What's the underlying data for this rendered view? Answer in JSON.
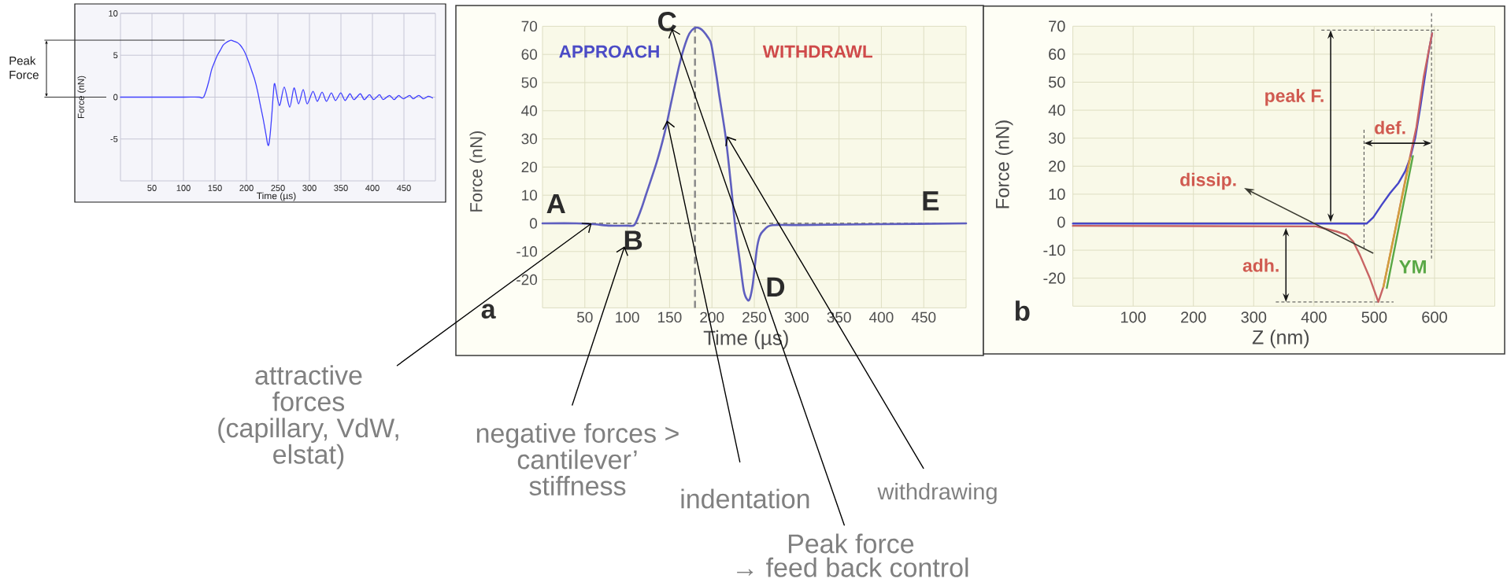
{
  "chart_data": [
    {
      "type": "line",
      "xlabel": "Time (µs)",
      "ylabel": "Force (nN)",
      "x": [
        0,
        50,
        100,
        125,
        128.9,
        132,
        135.7,
        140.3,
        144.8,
        149.4,
        153.9,
        158.5,
        163,
        167.6,
        172.1,
        176,
        179,
        185.8,
        190.3,
        194.9,
        199.5,
        204,
        208.6,
        213.1,
        217.7,
        222.2,
        226.8,
        231.3,
        233.6,
        235.4,
        237.7,
        240.4,
        242.7,
        245,
        252.3,
        260,
        268.7,
        275.5,
        282.8,
        290.1,
        296.4,
        305.6,
        312.4,
        320.1,
        327,
        334.7,
        341.5,
        349.7,
        356.6,
        364.3,
        370.7,
        380.7,
        387.1,
        395.3,
        402.1,
        411.2,
        417.1,
        427.1,
        434.4,
        441.7,
        449,
        459,
        464.9,
        473.6,
        480.9,
        488.6,
        495.4
      ],
      "values": [
        0,
        0,
        0,
        0,
        -0.1,
        0,
        0.7,
        1.9,
        3.3,
        4.2,
        5.0,
        5.6,
        6.2,
        6.5,
        6.7,
        6.8,
        6.7,
        6.5,
        6.2,
        5.7,
        5.0,
        4.1,
        3.1,
        2.1,
        0.7,
        -1.0,
        -2.7,
        -4.6,
        -5.6,
        -5.7,
        -4.4,
        -2.0,
        0.4,
        1.6,
        -1.0,
        1.2,
        -1.2,
        1.1,
        -0.8,
        0.9,
        -0.8,
        0.7,
        -0.5,
        0.6,
        -0.5,
        0.5,
        -0.4,
        0.5,
        -0.4,
        0.4,
        -0.3,
        0.4,
        -0.3,
        0.3,
        -0.3,
        0.3,
        -0.3,
        0.2,
        -0.3,
        0.2,
        -0.2,
        0.2,
        -0.2,
        0.2,
        -0.2,
        0.1,
        -0.1
      ],
      "color": "#4040ff",
      "xlim": [
        0,
        500
      ],
      "ylim": [
        -10,
        10
      ],
      "xticks": [
        50,
        100,
        150,
        200,
        250,
        300,
        350,
        400,
        450
      ],
      "yticks": [
        -5,
        0,
        5,
        10
      ],
      "grid": true,
      "ref_lines": [
        {
          "axis": "y",
          "value": 6.8,
          "color": "#333333",
          "label": "Peak Force"
        }
      ]
    },
    {
      "type": "line",
      "title": "a",
      "xlabel": "Time (µs)",
      "ylabel": "Force (nN)",
      "x": [
        0,
        40,
        60,
        80,
        100,
        108.6,
        116.2,
        122.4,
        134.7,
        143.9,
        150,
        159.3,
        165.4,
        171.6,
        176,
        181,
        186,
        190,
        195,
        199.3,
        205.4,
        208.5,
        216.1,
        222.3,
        227,
        233.1,
        237.7,
        242.3,
        245,
        248.4,
        253,
        256.5,
        260.8,
        270,
        300,
        400,
        500
      ],
      "values": [
        0,
        0,
        -0.3,
        -0.8,
        -0.8,
        -0.5,
        4.8,
        10.4,
        21.6,
        31.8,
        40.2,
        53.3,
        60.7,
        66.3,
        68.5,
        69.5,
        69.2,
        68.2,
        66.2,
        63.5,
        52.3,
        45.8,
        30.9,
        14.2,
        0.2,
        -13.8,
        -24,
        -27.3,
        -26.5,
        -21.2,
        -9.1,
        -4.5,
        -2.6,
        -0.7,
        -0.6,
        -0.3,
        0
      ],
      "color": "#5f5fbf",
      "xlim": [
        0,
        500
      ],
      "ylim": [
        -30,
        70
      ],
      "xticks": [
        {
          "value": 0,
          "label": null
        },
        50,
        100,
        150,
        200,
        250,
        300,
        350,
        400,
        450,
        {
          "value": 500,
          "label": null
        }
      ],
      "yticks": [
        {
          "value": -30,
          "label": null
        },
        -20,
        -10,
        0,
        10,
        20,
        30,
        40,
        50,
        60,
        70
      ],
      "grid": true,
      "ref_lines": [
        {
          "axis": "y",
          "value": 0,
          "color": "#2a2a2a",
          "line_style": "dashed"
        },
        {
          "axis": "x",
          "value": 180,
          "color": "#8a8a8a",
          "line_style": "dashed"
        }
      ],
      "annotations": [
        "A",
        "B",
        "C",
        "D",
        "E",
        "APPROACH",
        "WITHDRAWL",
        {
          "text": "attractive forces (capillary, VdW, elstat)",
          "x": 58,
          "y": 0
        },
        "negative forces > cantilever’ stiffness",
        {
          "text": "indentation",
          "x": 147,
          "y": 36.5
        },
        "Peak force",
        "→ feed back control",
        {
          "text": "withdrawing",
          "x": 217.7,
          "y": 30.9
        }
      ]
    },
    {
      "type": "line",
      "title": "b",
      "xlabel": "Z (nm)",
      "ylabel": "Force (nN)",
      "series": [
        {
          "color": "#4646c8",
          "x": [
            0,
            487.3,
            498.4,
            512.4,
            526.3,
            540.2,
            551.4,
            559.7,
            568.1,
            576.4,
            584.8,
            590,
            596
          ],
          "values": [
            -0.5,
            -0.5,
            1.7,
            6.2,
            10.4,
            14.0,
            18.2,
            23.0,
            30.2,
            41.0,
            53.0,
            60.5,
            67.4
          ]
        },
        {
          "color": "#c86464",
          "x": [
            0,
            403.7,
            437.2,
            453.9,
            465,
            476.2,
            492.9,
            506.8,
            515.2,
            537.5,
            558,
            570,
            582,
            596
          ],
          "values": [
            -1.3,
            -1.5,
            -3.3,
            -4.5,
            -6.9,
            -11.7,
            -20.1,
            -28.5,
            -23.1,
            0,
            22,
            34,
            51.8,
            67.4
          ]
        },
        {
          "color": "#d2a03c",
          "x": [
            515.2,
            559.7
          ],
          "values": [
            -23.1,
            23.0
          ]
        },
        {
          "name": "YM",
          "color": "#5aa846",
          "x": [
            520.8,
            564.1
          ],
          "values": [
            -23.5,
            23.6
          ]
        }
      ],
      "xlim": [
        0,
        700
      ],
      "ylim": [
        -30,
        70
      ],
      "xticks": [
        {
          "value": 0,
          "label": null
        },
        100,
        200,
        300,
        400,
        500,
        600,
        {
          "value": 700,
          "label": null
        }
      ],
      "yticks": [
        {
          "value": -30,
          "label": null
        },
        -20,
        -10,
        0,
        10,
        20,
        30,
        40,
        50,
        60,
        70
      ],
      "grid": true,
      "ref_lines": [
        {
          "axis": "y",
          "value": 68.6,
          "color": "#444444",
          "line_style": "dashed"
        },
        {
          "axis": "x",
          "value": 483,
          "color": "#444444",
          "line_style": "dashed"
        },
        {
          "axis": "x",
          "value": 595,
          "color": "#444444",
          "line_style": "dashed"
        },
        {
          "axis": "y",
          "value": -28.5,
          "color": "#444444",
          "line_style": "dashed",
          "label": "adh."
        }
      ],
      "annotations": [
        "peak F.",
        "def.",
        "dissip."
      ]
    }
  ]
}
